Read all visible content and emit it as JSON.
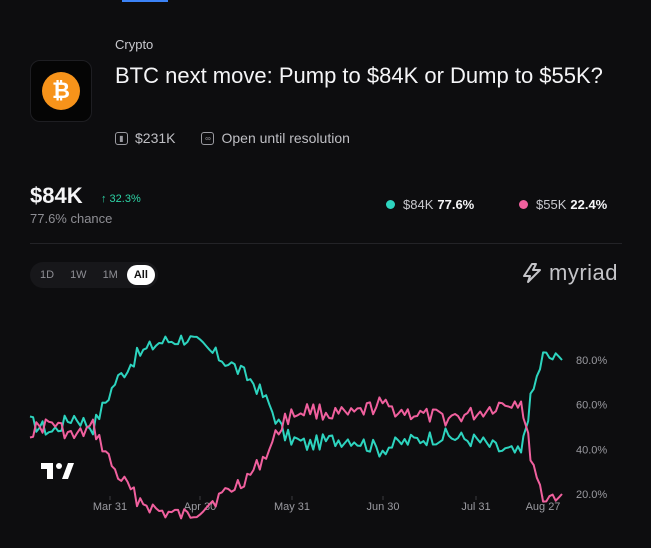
{
  "market": {
    "category": "Crypto",
    "title": "BTC next move: Pump to $84K or Dump to $55K?",
    "volume": "$231K",
    "status": "Open until resolution",
    "icon": "bitcoin-icon"
  },
  "headline": {
    "price": "$84K",
    "change": "↑ 32.3%",
    "chance": "77.6% chance"
  },
  "legend": [
    {
      "label": "$84K",
      "value": "77.6%",
      "color": "#2dd4bf"
    },
    {
      "label": "$55K",
      "value": "22.4%",
      "color": "#f0609e"
    }
  ],
  "range_tabs": [
    "1D",
    "1W",
    "1M",
    "All"
  ],
  "active_range": "All",
  "brand": "myriad",
  "colors": {
    "yes": "#2dd4bf",
    "no": "#f0609e",
    "accent": "#3b82f6"
  },
  "chart_data": {
    "type": "line",
    "x_ticks": [
      "Mar 31",
      "Apr 30",
      "May 31",
      "Jun 30",
      "Jul 31",
      "Aug 27"
    ],
    "y_ticks": [
      "80.0%",
      "60.0%",
      "40.0%",
      "20.0%"
    ],
    "ylim": [
      0,
      100
    ],
    "grid": false,
    "series": [
      {
        "name": "$84K",
        "x": [
          "Mar 11",
          "Mar 18",
          "Mar 25",
          "Mar 31",
          "Apr 7",
          "Apr 14",
          "Apr 21",
          "Apr 30",
          "May 7",
          "May 14",
          "May 21",
          "May 26",
          "May 31",
          "Jun 7",
          "Jun 14",
          "Jun 21",
          "Jun 30",
          "Jul 7",
          "Jul 14",
          "Jul 21",
          "Jul 31",
          "Aug 7",
          "Aug 14",
          "Aug 17",
          "Aug 21",
          "Aug 27"
        ],
        "values": [
          52,
          48,
          55,
          50,
          70,
          82,
          88,
          90,
          84,
          78,
          70,
          60,
          46,
          42,
          44,
          45,
          40,
          43,
          45,
          46,
          44,
          40,
          38,
          62,
          82,
          80
        ]
      },
      {
        "name": "$55K",
        "x": [
          "Mar 11",
          "Mar 18",
          "Mar 25",
          "Mar 31",
          "Apr 7",
          "Apr 14",
          "Apr 21",
          "Apr 30",
          "May 7",
          "May 14",
          "May 21",
          "May 26",
          "May 31",
          "Jun 7",
          "Jun 14",
          "Jun 21",
          "Jun 30",
          "Jul 7",
          "Jul 14",
          "Jul 21",
          "Jul 31",
          "Aug 7",
          "Aug 14",
          "Aug 17",
          "Aug 21",
          "Aug 27"
        ],
        "values": [
          48,
          52,
          45,
          50,
          30,
          18,
          12,
          10,
          16,
          22,
          30,
          40,
          54,
          58,
          56,
          55,
          60,
          57,
          55,
          54,
          56,
          60,
          62,
          38,
          18,
          20
        ]
      }
    ]
  }
}
